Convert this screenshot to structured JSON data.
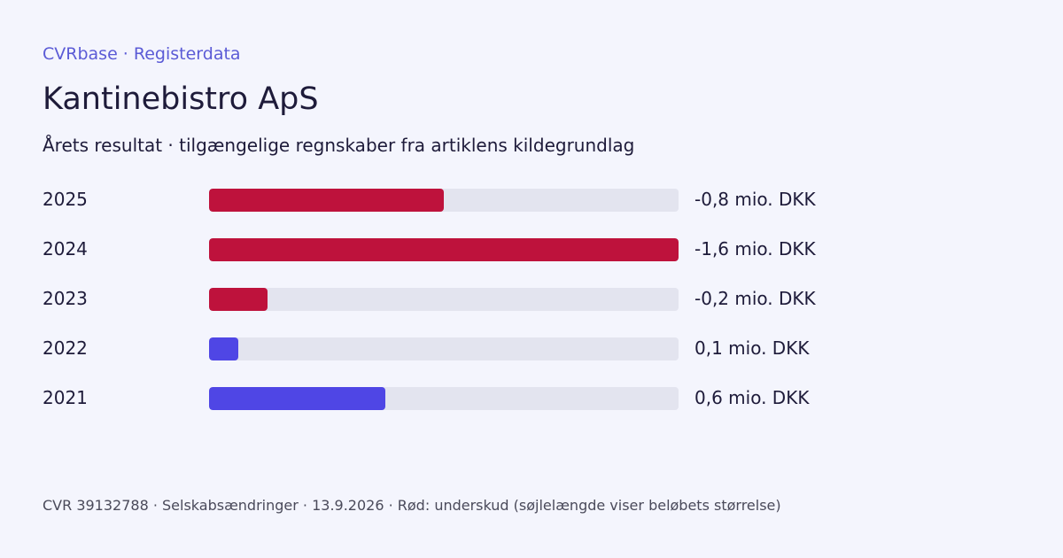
{
  "header": {
    "eyebrow": "CVRbase · Registerdata",
    "title": "Kantinebistro ApS",
    "subtitle": "Årets resultat · tilgængelige regnskaber fra artiklens kildegrundlag"
  },
  "colors": {
    "loss": "#be123c",
    "profit": "#4f46e5",
    "track": "#e3e4ef"
  },
  "chart_data": {
    "type": "bar",
    "orientation": "horizontal",
    "unit": "mio. DKK",
    "categories": [
      "2025",
      "2024",
      "2023",
      "2022",
      "2021"
    ],
    "values": [
      -0.8,
      -1.6,
      -0.2,
      0.1,
      0.6
    ],
    "value_labels": [
      "-0,8 mio. DKK",
      "-1,6 mio. DKK",
      "-0,2 mio. DKK",
      "0,1 mio. DKK",
      "0,6 mio. DKK"
    ],
    "title": "Kantinebistro ApS",
    "subtitle": "Årets resultat · tilgængelige regnskaber fra artiklens kildegrundlag",
    "bar_length_encodes": "absolute value",
    "grid": false
  },
  "footer": {
    "text": "CVR 39132788 · Selskabsændringer · 13.9.2026 · Rød: underskud (søjlelængde viser beløbets størrelse)"
  }
}
